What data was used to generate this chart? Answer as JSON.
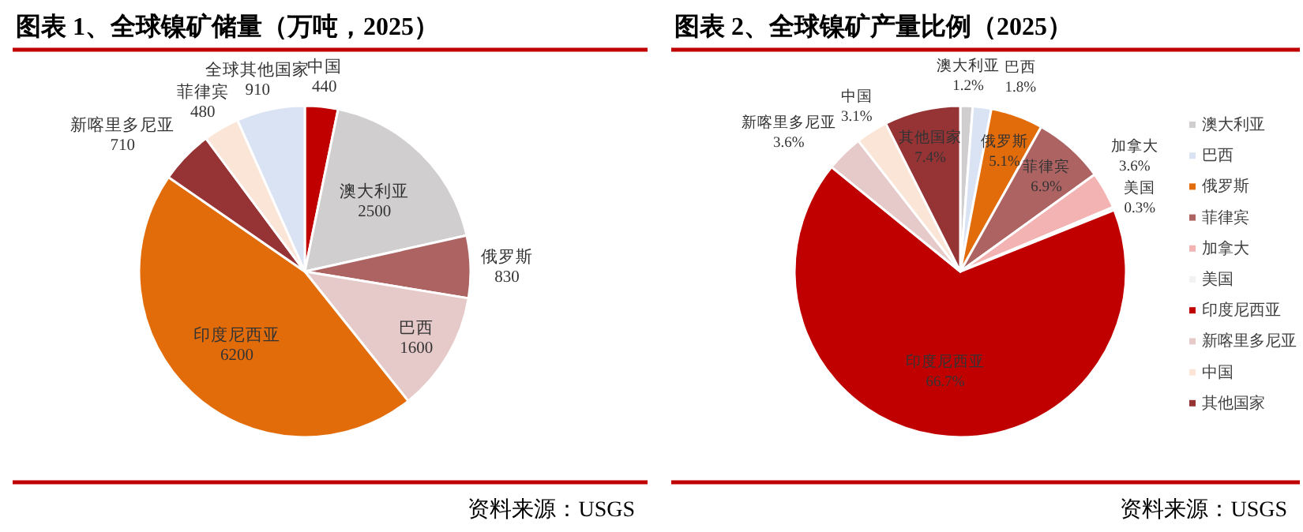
{
  "chart_data": [
    {
      "type": "pie",
      "title": "图表 1、全球镍矿储量（万吨，2025）",
      "categories": [
        "中国",
        "澳大利亚",
        "俄罗斯",
        "巴西",
        "印度尼西亚",
        "新喀里多尼亚",
        "菲律宾",
        "全球其他国家"
      ],
      "values": [
        440,
        2500,
        830,
        1600,
        6200,
        710,
        480,
        910
      ],
      "colors": [
        "#c00000",
        "#d0cece",
        "#ae6363",
        "#e6c9c9",
        "#e36c0a",
        "#953335",
        "#fbe5d6",
        "#dae3f3"
      ],
      "data_labels": true,
      "annotations": [
        "资料来源：USGS"
      ]
    },
    {
      "type": "pie",
      "title": "图表 2、全球镍矿产量比例（2025）",
      "categories": [
        "澳大利亚",
        "巴西",
        "俄罗斯",
        "菲律宾",
        "加拿大",
        "美国",
        "印度尼西亚",
        "新喀里多尼亚",
        "中国",
        "其他国家"
      ],
      "values": [
        1.2,
        1.8,
        5.1,
        6.9,
        3.6,
        0.3,
        66.7,
        3.6,
        3.1,
        7.4
      ],
      "value_labels": [
        "1.2%",
        "1.8%",
        "5.1%",
        "6.9%",
        "3.6%",
        "0.3%",
        "66.7%",
        "3.6%",
        "3.1%",
        "7.4%"
      ],
      "colors": [
        "#d0cece",
        "#dae3f3",
        "#e36c0a",
        "#ae6363",
        "#f4b3b3",
        "#f2f2f2",
        "#c00000",
        "#e6c9c9",
        "#fbe5d6",
        "#953335"
      ],
      "legend": "right",
      "annotations": [
        "资料来源：USGS"
      ]
    }
  ]
}
